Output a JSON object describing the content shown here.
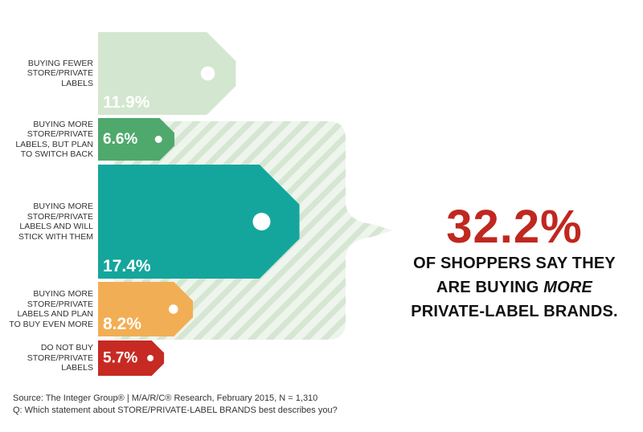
{
  "chart_data": {
    "type": "bar",
    "orientation": "horizontal",
    "categories": [
      "BUYING FEWER STORE/PRIVATE LABELS",
      "BUYING MORE STORE/PRIVATE LABELS, BUT PLAN TO SWITCH BACK",
      "BUYING MORE STORE/PRIVATE LABELS AND WILL STICK WITH THEM",
      "BUYING MORE STORE/PRIVATE LABELS AND PLAN TO BUY EVEN MORE",
      "DO NOT BUY STORE/PRIVATE LABELS"
    ],
    "category_lines": [
      [
        "BUYING FEWER",
        "STORE/PRIVATE",
        "LABELS"
      ],
      [
        "BUYING MORE",
        "STORE/PRIVATE",
        "LABELS, BUT PLAN",
        "TO SWITCH BACK"
      ],
      [
        "BUYING MORE",
        "STORE/PRIVATE",
        "LABELS AND WILL",
        "STICK WITH THEM"
      ],
      [
        "BUYING MORE",
        "STORE/PRIVATE",
        "LABELS AND PLAN",
        "TO BUY EVEN MORE"
      ],
      [
        "DO NOT BUY",
        "STORE/PRIVATE",
        "LABELS"
      ]
    ],
    "values": [
      11.9,
      6.6,
      17.4,
      8.2,
      5.7
    ],
    "value_labels": [
      "11.9%",
      "6.6%",
      "17.4%",
      "8.2%",
      "5.7%"
    ],
    "colors": [
      "#d3e6cf",
      "#4fa96c",
      "#14a69c",
      "#f2ae54",
      "#c72a22"
    ],
    "bracketed_categories": [
      1,
      2,
      3
    ],
    "unit": "%"
  },
  "callout": {
    "value": "32.2%",
    "line1": "OF SHOPPERS SAY THEY",
    "line2_prefix": "ARE BUYING",
    "line2_emphasis": "MORE",
    "line3": "PRIVATE-LABEL BRANDS."
  },
  "source": {
    "line1": "Source: The Integer Group® | M/A/R/C® Research, February 2015, N = 1,310",
    "line2": "Q: Which statement about STORE/PRIVATE-LABEL BRANDS best describes you?"
  },
  "colors": {
    "accent_red": "#c0271f",
    "hatch_fill": "#eef5ec",
    "hatch_line": "#d6e6d4"
  }
}
